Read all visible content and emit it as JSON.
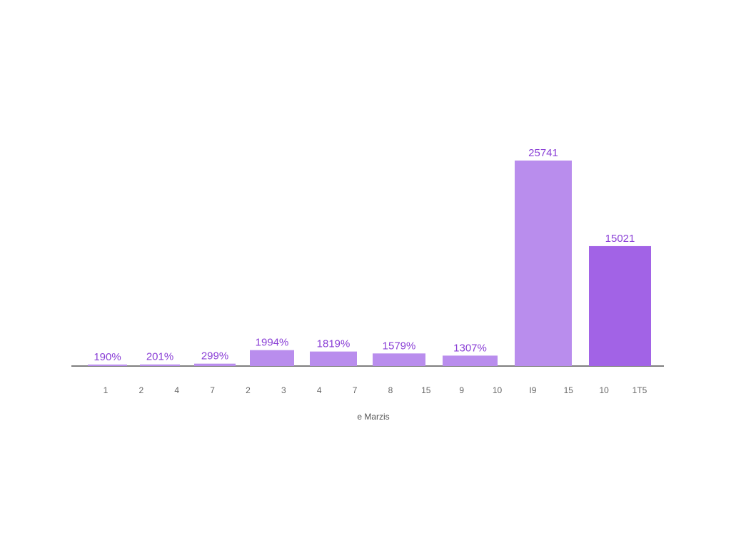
{
  "chart_data": {
    "type": "bar",
    "values": [
      190,
      201,
      299,
      1994,
      1819,
      1579,
      1307,
      25741,
      15021
    ],
    "value_labels": [
      "190%",
      "201%",
      "299%",
      "1994%",
      "1819%",
      "1579%",
      "1307%",
      "25741",
      "15021"
    ],
    "colors": [
      "#b98ded",
      "#b98ded",
      "#b98ded",
      "#b98ded",
      "#b98ded",
      "#b98ded",
      "#b98ded",
      "#b98ded",
      "#a263e6"
    ],
    "label_color": "#8a3fd6",
    "tick_labels": [
      "1",
      "2",
      "4",
      "7",
      "2",
      "3",
      "4",
      "7",
      "8",
      "15",
      "9",
      "10",
      "I9",
      "15",
      "10",
      "1T5"
    ],
    "x_label": "e Marzis"
  }
}
